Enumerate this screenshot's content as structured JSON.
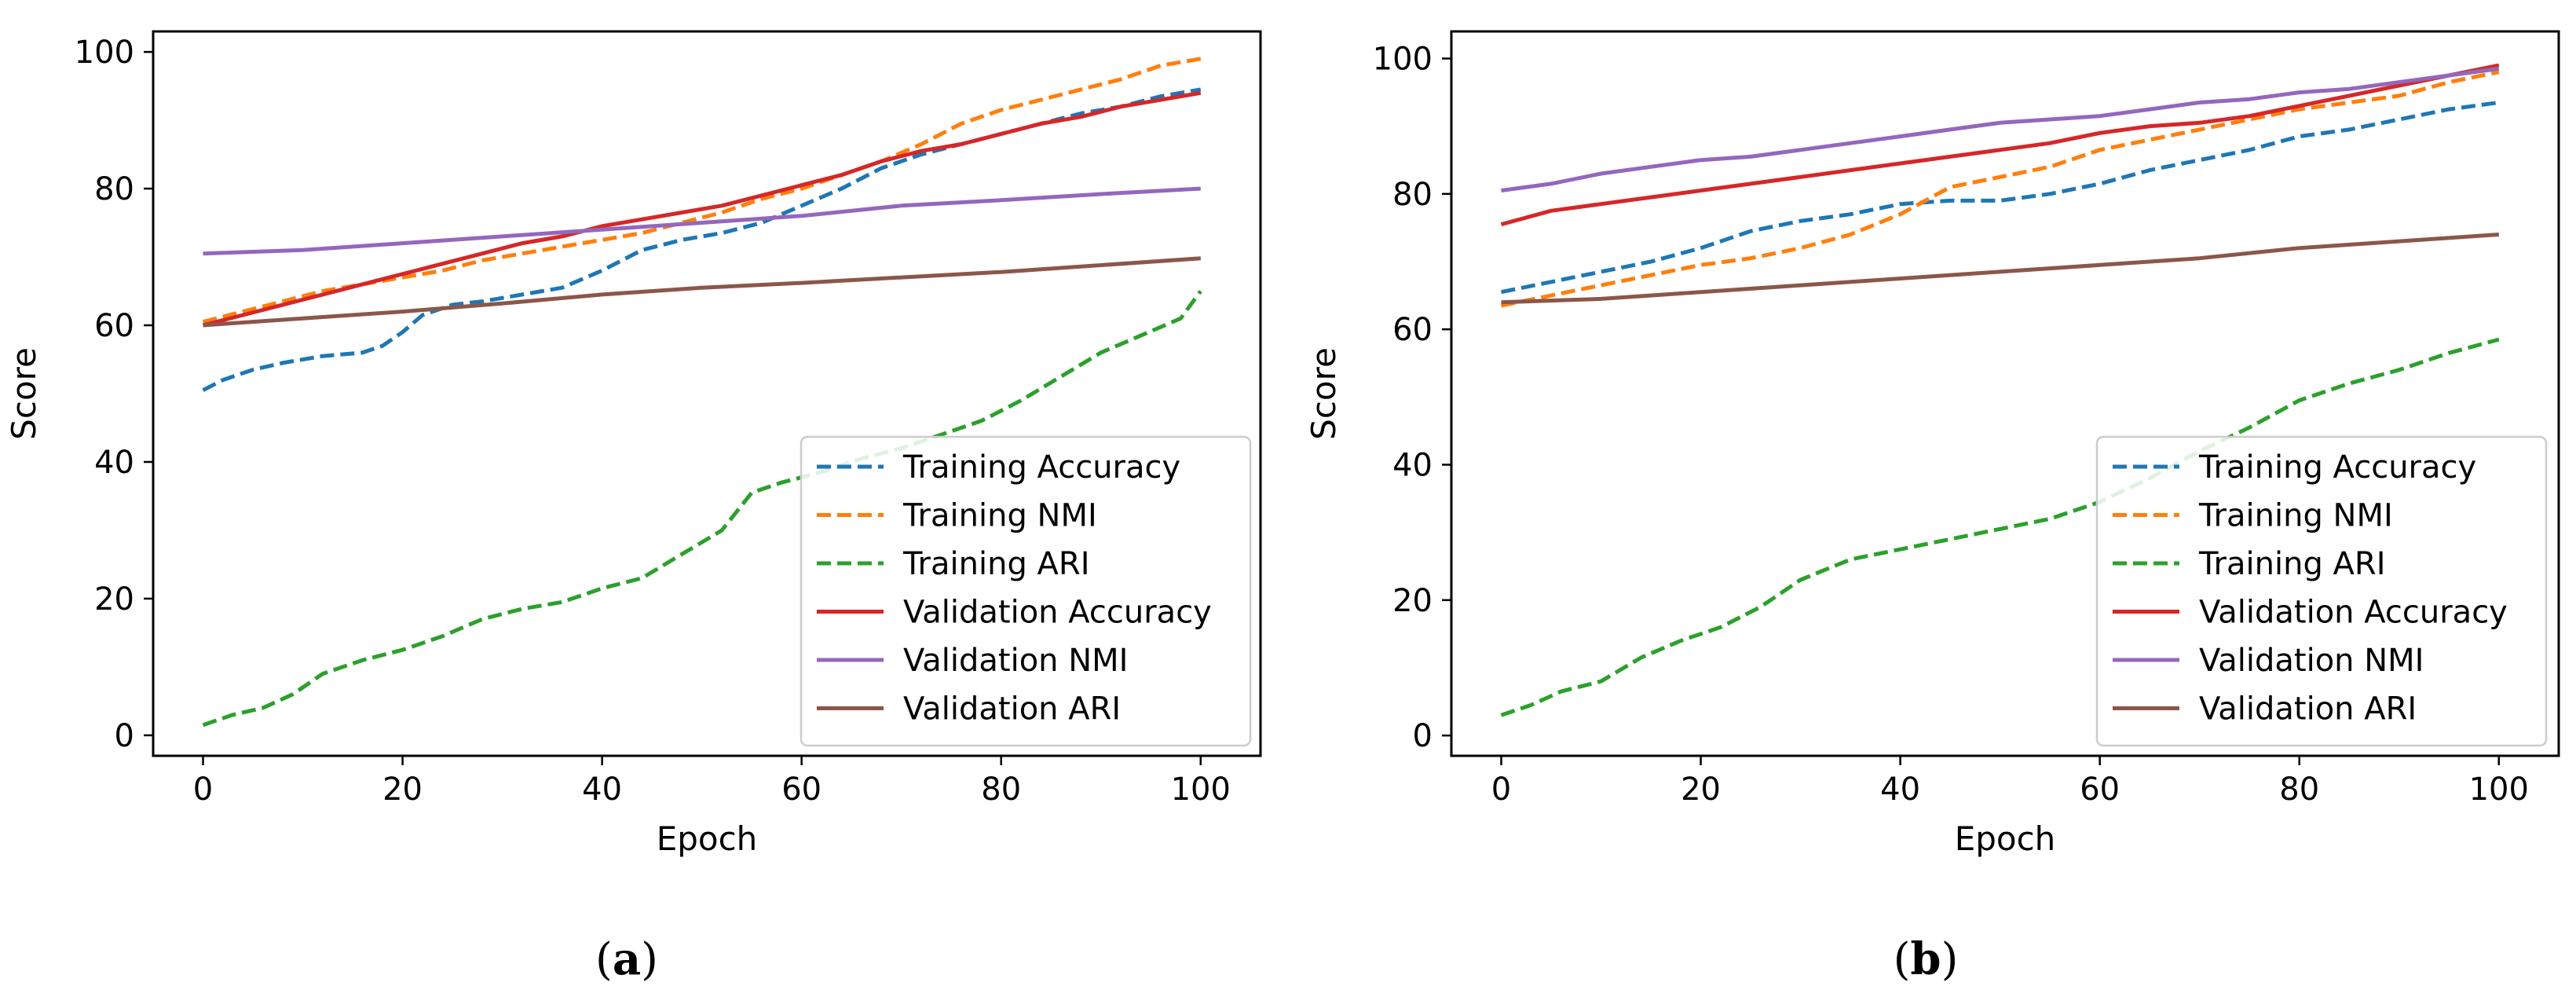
{
  "chart_data": [
    {
      "type": "line",
      "panel_label": "a",
      "xlabel": "Epoch",
      "ylabel": "Score",
      "xlim": [
        -5,
        106
      ],
      "ylim": [
        -3,
        103
      ],
      "xticks": [
        0,
        20,
        40,
        60,
        80,
        100
      ],
      "yticks": [
        0,
        20,
        40,
        60,
        80,
        100
      ],
      "legend_location": "lower-right",
      "series": [
        {
          "name": "Training Accuracy",
          "color": "#1f77b4",
          "style": "dashed",
          "x": [
            0,
            2,
            5,
            8,
            12,
            16,
            18,
            20,
            22,
            25,
            28,
            32,
            36,
            40,
            44,
            48,
            52,
            56,
            60,
            64,
            68,
            72,
            76,
            80,
            84,
            88,
            92,
            96,
            100
          ],
          "y": [
            50.5,
            52,
            53.5,
            54.5,
            55.5,
            56,
            57,
            59,
            61.5,
            63,
            63.5,
            64.5,
            65.5,
            68,
            71,
            72.5,
            73.5,
            75,
            77.5,
            80,
            83,
            85,
            86.5,
            88,
            89.5,
            91,
            92,
            93.5,
            94.5
          ]
        },
        {
          "name": "Training NMI",
          "color": "#ff7f0e",
          "style": "dashed",
          "x": [
            0,
            4,
            8,
            12,
            16,
            20,
            24,
            28,
            32,
            36,
            40,
            44,
            48,
            52,
            56,
            60,
            64,
            68,
            72,
            76,
            80,
            84,
            88,
            92,
            96,
            100
          ],
          "y": [
            60.5,
            62,
            63.5,
            65,
            66,
            67,
            68,
            69.5,
            70.5,
            71.5,
            72.5,
            73.5,
            75,
            76.5,
            78.5,
            80,
            82,
            84,
            86.5,
            89.5,
            91.5,
            93,
            94.5,
            96,
            98,
            99
          ]
        },
        {
          "name": "Training ARI",
          "color": "#2ca02c",
          "style": "dashed",
          "x": [
            0,
            3,
            6,
            9,
            12,
            16,
            20,
            24,
            28,
            32,
            36,
            40,
            44,
            48,
            52,
            55,
            58,
            62,
            66,
            70,
            74,
            78,
            82,
            86,
            90,
            94,
            98,
            100
          ],
          "y": [
            1.5,
            3,
            4,
            6,
            9,
            11,
            12.5,
            14.5,
            17,
            18.5,
            19.5,
            21.5,
            23,
            26.5,
            30,
            35.5,
            37,
            38.5,
            40.5,
            42,
            44,
            46,
            49,
            52.5,
            56,
            58.5,
            61,
            65
          ]
        },
        {
          "name": "Validation Accuracy",
          "color": "#d62728",
          "style": "solid",
          "x": [
            0,
            4,
            8,
            12,
            16,
            20,
            24,
            28,
            32,
            36,
            40,
            44,
            48,
            52,
            56,
            60,
            64,
            68,
            72,
            76,
            80,
            84,
            88,
            92,
            96,
            100
          ],
          "y": [
            60,
            61.5,
            63,
            64.5,
            66,
            67.5,
            69,
            70.5,
            72,
            73,
            74.5,
            75.5,
            76.5,
            77.5,
            79,
            80.5,
            82,
            84,
            85.5,
            86.5,
            88,
            89.5,
            90.5,
            92,
            93,
            94
          ]
        },
        {
          "name": "Validation NMI",
          "color": "#9467bd",
          "style": "solid",
          "x": [
            0,
            10,
            20,
            30,
            40,
            50,
            60,
            70,
            80,
            90,
            100
          ],
          "y": [
            70.5,
            71,
            72,
            73,
            74,
            75,
            76,
            77.5,
            78.3,
            79.2,
            80
          ]
        },
        {
          "name": "Validation ARI",
          "color": "#8c564b",
          "style": "solid",
          "x": [
            0,
            10,
            20,
            30,
            40,
            50,
            60,
            70,
            80,
            90,
            100
          ],
          "y": [
            60,
            61,
            62,
            63.2,
            64.5,
            65.5,
            66.2,
            67,
            67.8,
            68.8,
            69.8
          ]
        }
      ]
    },
    {
      "type": "line",
      "panel_label": "b",
      "xlabel": "Epoch",
      "ylabel": "Score",
      "xlim": [
        -5,
        106
      ],
      "ylim": [
        -3,
        104
      ],
      "xticks": [
        0,
        20,
        40,
        60,
        80,
        100
      ],
      "yticks": [
        0,
        20,
        40,
        60,
        80,
        100
      ],
      "legend_location": "lower-right",
      "series": [
        {
          "name": "Training Accuracy",
          "color": "#1f77b4",
          "style": "dashed",
          "x": [
            0,
            5,
            10,
            15,
            20,
            25,
            30,
            35,
            40,
            45,
            50,
            55,
            60,
            65,
            70,
            75,
            80,
            85,
            90,
            95,
            100
          ],
          "y": [
            65.5,
            67,
            68.5,
            70,
            72,
            74.5,
            76,
            77,
            78.5,
            79,
            79,
            80,
            81.5,
            83.5,
            85,
            86.5,
            88.5,
            89.5,
            91,
            92.5,
            93.5
          ]
        },
        {
          "name": "Training NMI",
          "color": "#ff7f0e",
          "style": "dashed",
          "x": [
            0,
            5,
            10,
            15,
            20,
            25,
            30,
            35,
            40,
            45,
            50,
            55,
            60,
            65,
            70,
            75,
            80,
            85,
            90,
            95,
            100
          ],
          "y": [
            63.5,
            65,
            66.5,
            68,
            69.5,
            70.5,
            72,
            74,
            77,
            81,
            82.5,
            84,
            86.5,
            88,
            89.5,
            91,
            92.5,
            93.5,
            94.5,
            96.5,
            98
          ]
        },
        {
          "name": "Training ARI",
          "color": "#2ca02c",
          "style": "dashed",
          "x": [
            0,
            3,
            6,
            10,
            14,
            18,
            22,
            26,
            30,
            35,
            40,
            45,
            50,
            55,
            60,
            65,
            70,
            75,
            80,
            85,
            90,
            95,
            100
          ],
          "y": [
            3,
            4.5,
            6.5,
            8,
            11.5,
            14,
            16,
            19,
            23,
            26,
            27.5,
            29,
            30.5,
            32,
            34.5,
            38,
            42,
            45.5,
            49.5,
            52,
            54,
            56.5,
            58.5
          ]
        },
        {
          "name": "Validation Accuracy",
          "color": "#d62728",
          "style": "solid",
          "x": [
            0,
            5,
            10,
            15,
            20,
            25,
            30,
            35,
            40,
            45,
            50,
            55,
            60,
            65,
            70,
            75,
            80,
            85,
            90,
            95,
            100
          ],
          "y": [
            75.5,
            77.5,
            78.5,
            79.5,
            80.5,
            81.5,
            82.5,
            83.5,
            84.5,
            85.5,
            86.5,
            87.5,
            89,
            90,
            90.5,
            91.5,
            93,
            94.5,
            96,
            97.5,
            99
          ]
        },
        {
          "name": "Validation NMI",
          "color": "#9467bd",
          "style": "solid",
          "x": [
            0,
            5,
            10,
            15,
            20,
            25,
            30,
            35,
            40,
            45,
            50,
            55,
            60,
            65,
            70,
            75,
            80,
            85,
            90,
            95,
            100
          ],
          "y": [
            80.5,
            81.5,
            83,
            84,
            85,
            85.5,
            86.5,
            87.5,
            88.5,
            89.5,
            90.5,
            91,
            91.5,
            92.5,
            93.5,
            94,
            95,
            95.5,
            96.5,
            97.5,
            98.5
          ]
        },
        {
          "name": "Validation ARI",
          "color": "#8c564b",
          "style": "solid",
          "x": [
            0,
            10,
            20,
            30,
            40,
            50,
            60,
            70,
            80,
            90,
            100
          ],
          "y": [
            64,
            64.5,
            65.5,
            66.5,
            67.5,
            68.5,
            69.5,
            70.5,
            72,
            73,
            74
          ]
        }
      ]
    }
  ]
}
